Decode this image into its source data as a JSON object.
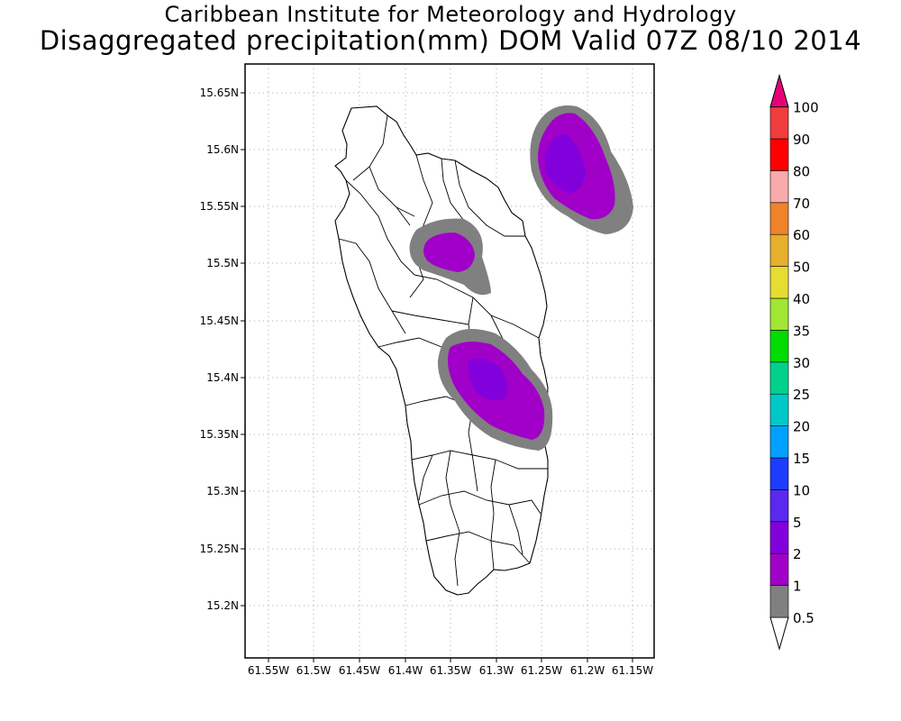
{
  "header": {
    "title": "Caribbean Institute for Meteorology and Hydrology",
    "subtitle": "Disaggregated precipitation(mm) DOM Valid 07Z 08/10 2014"
  },
  "map": {
    "region": "Dominica",
    "lat_ticks": [
      "15.65N",
      "15.6N",
      "15.55N",
      "15.5N",
      "15.45N",
      "15.4N",
      "15.35N",
      "15.3N",
      "15.25N",
      "15.2N"
    ],
    "lon_ticks": [
      "61.55W",
      "61.5W",
      "61.45W",
      "61.4W",
      "61.35W",
      "61.3W",
      "61.25W",
      "61.2W",
      "61.15W"
    ],
    "grid": true
  },
  "colorbar": {
    "levels": [
      "0.5",
      "1",
      "2",
      "5",
      "10",
      "15",
      "20",
      "25",
      "30",
      "35",
      "40",
      "50",
      "60",
      "70",
      "80",
      "90",
      "100"
    ],
    "colors": [
      "#808080",
      "#a000c8",
      "#8200dc",
      "#5a28f0",
      "#1e3cff",
      "#00a0ff",
      "#00c8c8",
      "#00d28c",
      "#00dc00",
      "#a0e632",
      "#e6dc32",
      "#e6af2d",
      "#f08228",
      "#faaaaa",
      "#ff0000",
      "#f03c3c",
      "#e60078"
    ]
  }
}
